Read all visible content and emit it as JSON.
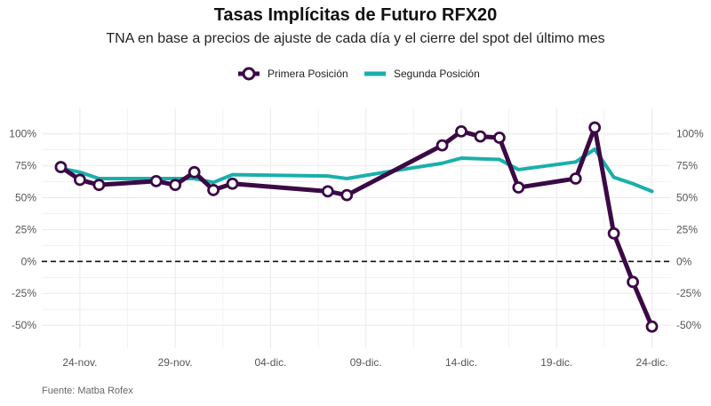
{
  "colors": {
    "primera": "#3b0a45",
    "segunda": "#1aafab",
    "grid": "#ebebeb",
    "zero": "#111111"
  },
  "chart_data": {
    "type": "line",
    "title": "Tasas Implícitas de Futuro RFX20",
    "subtitle": "TNA en base a precios de ajuste de cada día y el cierre del spot del último mes",
    "source": "Fuente: Matba Rofex",
    "xlabel": "",
    "ylabel": "",
    "x_ticks": [
      "24-nov.",
      "29-nov.",
      "04-dic.",
      "09-dic.",
      "14-dic.",
      "19-dic.",
      "24-dic."
    ],
    "x_tick_days": [
      24,
      29,
      34,
      39,
      44,
      49,
      54
    ],
    "y_ticks": [
      "-50%",
      "-25%",
      "0%",
      "25%",
      "50%",
      "75%",
      "100%"
    ],
    "y_tick_values": [
      -50,
      -25,
      0,
      25,
      50,
      75,
      100
    ],
    "xlim": [
      22,
      55
    ],
    "ylim": [
      -68,
      120
    ],
    "legend_position": "top",
    "series": [
      {
        "name": "Primera Posición",
        "marker": "circle",
        "x": [
          23,
          24,
          25,
          28,
          29,
          30,
          31,
          32,
          37,
          38,
          43,
          44,
          45,
          46,
          47,
          50,
          51,
          52,
          53,
          54
        ],
        "y": [
          74,
          64,
          60,
          63,
          60,
          70,
          56,
          61,
          55,
          52,
          91,
          102,
          98,
          97,
          58,
          65,
          105,
          22,
          -16,
          -51
        ]
      },
      {
        "name": "Segunda Posición",
        "marker": "none",
        "x": [
          23,
          24,
          25,
          29,
          30,
          31,
          32,
          37,
          38,
          40,
          43,
          44,
          46,
          47,
          50,
          51,
          52,
          53,
          54
        ],
        "y": [
          73,
          70,
          65,
          65,
          65,
          62,
          68,
          67,
          65,
          70,
          77,
          81,
          80,
          72,
          78,
          88,
          66,
          61,
          55
        ]
      }
    ]
  }
}
